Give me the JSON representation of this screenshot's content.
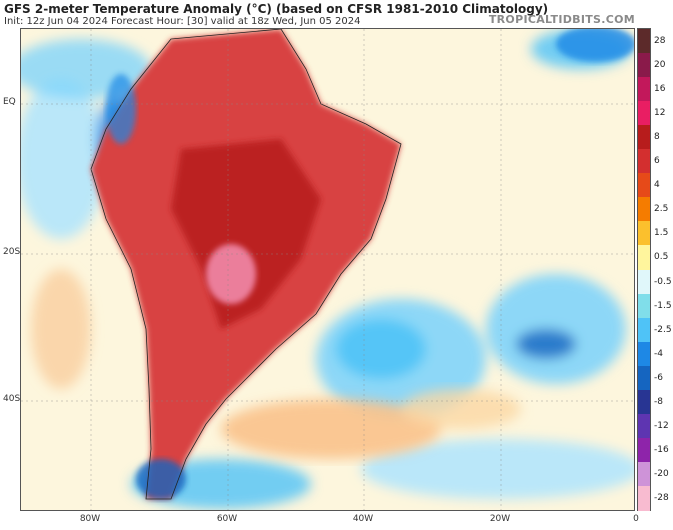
{
  "header": {
    "title": "GFS 2-meter Temperature Anomaly (°C) (based on CFSR 1981-2010 Climatology)",
    "subtitle": "Init: 12z Jun 04 2024   Forecast Hour: [30]   valid at 18z Wed, Jun 05 2024",
    "brand": "TROPICALTIDBITS.COM"
  },
  "axes": {
    "lat_labels": [
      "EQ",
      "20S",
      "40S"
    ],
    "lon_labels": [
      "80W",
      "60W",
      "40W",
      "20W",
      "0"
    ]
  },
  "colorbar": {
    "levels": [
      "28",
      "20",
      "16",
      "12",
      "8",
      "6",
      "4",
      "2.5",
      "1.5",
      "0.5",
      "-0.5",
      "-1.5",
      "-2.5",
      "-4",
      "-6",
      "-8",
      "-12",
      "-16",
      "-20",
      "-28"
    ],
    "colors": [
      "#5c2a2a",
      "#8a1a4a",
      "#c2185b",
      "#e91e63",
      "#b71c1c",
      "#d32f2f",
      "#e64a19",
      "#f57c00",
      "#fbc02d",
      "#fff59d",
      "#e0f7fa",
      "#80deea",
      "#4fc3f7",
      "#1e88e5",
      "#1565c0",
      "#283593",
      "#5e35b1",
      "#8e24aa",
      "#ce93d8",
      "#f8bbd0"
    ]
  },
  "legend_colors": {
    "ocean_neutral": "#fdf6dd",
    "warm_strong": "#c62828",
    "warm_mid": "#e57373",
    "warm_light": "#f9c28b",
    "cool_light": "#b3e5fc",
    "cool_mid": "#4fc3f7",
    "cool_strong": "#1565c0"
  }
}
